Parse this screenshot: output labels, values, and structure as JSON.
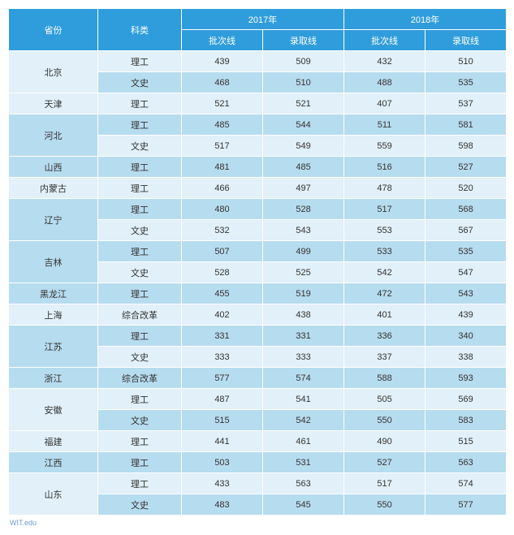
{
  "table": {
    "header": {
      "province": "省份",
      "category": "科类",
      "year2017": "2017年",
      "year2018": "2018年",
      "batchLine": "批次线",
      "admitLine": "录取线"
    },
    "columnWidths": {
      "province": 110,
      "category": 103,
      "val": 100
    },
    "colors": {
      "headerBg": "#2f9ddc",
      "headerText": "#ffffff",
      "rowEven": "#e1f0f9",
      "rowOdd": "#b6dcef",
      "cellText": "#333333",
      "footnote": "#6b9bd1",
      "border": "#ffffff"
    },
    "fontSize": 11,
    "provinces": [
      {
        "name": "北京",
        "rows": [
          {
            "cat": "理工",
            "b17": "439",
            "a17": "509",
            "b18": "432",
            "a18": "510"
          },
          {
            "cat": "文史",
            "b17": "468",
            "a17": "510",
            "b18": "488",
            "a18": "535"
          }
        ]
      },
      {
        "name": "天津",
        "rows": [
          {
            "cat": "理工",
            "b17": "521",
            "a17": "521",
            "b18": "407",
            "a18": "537"
          }
        ]
      },
      {
        "name": "河北",
        "rows": [
          {
            "cat": "理工",
            "b17": "485",
            "a17": "544",
            "b18": "511",
            "a18": "581"
          },
          {
            "cat": "文史",
            "b17": "517",
            "a17": "549",
            "b18": "559",
            "a18": "598"
          }
        ]
      },
      {
        "name": "山西",
        "rows": [
          {
            "cat": "理工",
            "b17": "481",
            "a17": "485",
            "b18": "516",
            "a18": "527"
          }
        ]
      },
      {
        "name": "内蒙古",
        "rows": [
          {
            "cat": "理工",
            "b17": "466",
            "a17": "497",
            "b18": "478",
            "a18": "520"
          }
        ]
      },
      {
        "name": "辽宁",
        "rows": [
          {
            "cat": "理工",
            "b17": "480",
            "a17": "528",
            "b18": "517",
            "a18": "568"
          },
          {
            "cat": "文史",
            "b17": "532",
            "a17": "543",
            "b18": "553",
            "a18": "567"
          }
        ]
      },
      {
        "name": "吉林",
        "rows": [
          {
            "cat": "理工",
            "b17": "507",
            "a17": "499",
            "b18": "533",
            "a18": "535"
          },
          {
            "cat": "文史",
            "b17": "528",
            "a17": "525",
            "b18": "542",
            "a18": "547"
          }
        ]
      },
      {
        "name": "黑龙江",
        "rows": [
          {
            "cat": "理工",
            "b17": "455",
            "a17": "519",
            "b18": "472",
            "a18": "543"
          }
        ]
      },
      {
        "name": "上海",
        "rows": [
          {
            "cat": "综合改革",
            "b17": "402",
            "a17": "438",
            "b18": "401",
            "a18": "439"
          }
        ]
      },
      {
        "name": "江苏",
        "rows": [
          {
            "cat": "理工",
            "b17": "331",
            "a17": "331",
            "b18": "336",
            "a18": "340"
          },
          {
            "cat": "文史",
            "b17": "333",
            "a17": "333",
            "b18": "337",
            "a18": "338"
          }
        ]
      },
      {
        "name": "浙江",
        "rows": [
          {
            "cat": "综合改革",
            "b17": "577",
            "a17": "574",
            "b18": "588",
            "a18": "593"
          }
        ]
      },
      {
        "name": "安徽",
        "rows": [
          {
            "cat": "理工",
            "b17": "487",
            "a17": "541",
            "b18": "505",
            "a18": "569"
          },
          {
            "cat": "文史",
            "b17": "515",
            "a17": "542",
            "b18": "550",
            "a18": "583"
          }
        ]
      },
      {
        "name": "福建",
        "rows": [
          {
            "cat": "理工",
            "b17": "441",
            "a17": "461",
            "b18": "490",
            "a18": "515"
          }
        ]
      },
      {
        "name": "江西",
        "rows": [
          {
            "cat": "理工",
            "b17": "503",
            "a17": "531",
            "b18": "527",
            "a18": "563"
          }
        ]
      },
      {
        "name": "山东",
        "rows": [
          {
            "cat": "理工",
            "b17": "433",
            "a17": "563",
            "b18": "517",
            "a18": "574"
          },
          {
            "cat": "文史",
            "b17": "483",
            "a17": "545",
            "b18": "550",
            "a18": "577"
          }
        ]
      }
    ],
    "footnote": "WIT.edu"
  }
}
